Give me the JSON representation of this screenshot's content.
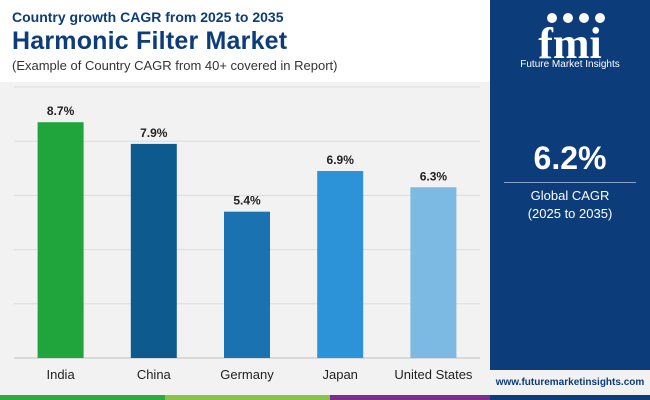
{
  "header": {
    "subtitle": "Country growth CAGR from 2025 to 2035",
    "title": "Harmonic Filter Market",
    "note": "(Example of Country CAGR from 40+ covered in Report)"
  },
  "sidebar": {
    "logo_letters": "fmi",
    "logo_text": "Future Market Insights",
    "cagr_value": "6.2%",
    "cagr_label": "Global CAGR",
    "cagr_period": "(2025 to 2035)",
    "website": "www.futuremarketinsights.com"
  },
  "colors": {
    "brand": "#0d3c7a",
    "bars": [
      "#1fa53c",
      "#0d5a8e",
      "#1b72b0",
      "#2d93d8",
      "#7cbae3"
    ],
    "footer": [
      "#2eaa3e",
      "#8bc34a",
      "#7b2d8e",
      "#0d3c7a"
    ]
  },
  "chart_data": {
    "type": "bar",
    "title": "Harmonic Filter Market",
    "categories": [
      "India",
      "China",
      "Germany",
      "Japan",
      "United States"
    ],
    "values": [
      8.7,
      7.9,
      5.4,
      6.9,
      6.3
    ],
    "labels": [
      "8.7%",
      "7.9%",
      "5.4%",
      "6.9%",
      "6.3%"
    ],
    "ylim": [
      0,
      10
    ],
    "grid": true,
    "xlabel": "",
    "ylabel": ""
  }
}
